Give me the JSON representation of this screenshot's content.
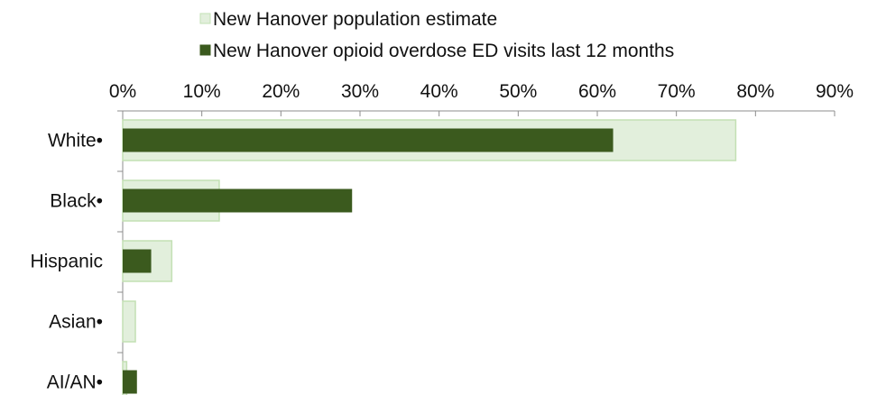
{
  "chart_data": {
    "type": "bar",
    "orientation": "horizontal",
    "title": "",
    "xlabel": "",
    "ylabel": "",
    "categories": [
      "White•",
      "Black•",
      "Hispanic",
      "Asian•",
      "AI/AN•"
    ],
    "series": [
      {
        "name": "New Hanover population estimate",
        "values": [
          77.5,
          12.2,
          6.2,
          1.6,
          0.5
        ],
        "fill": "#e2efdc",
        "stroke": "#c3e0b4"
      },
      {
        "name": "New Hanover opioid overdose ED visits last 12 months",
        "values": [
          62,
          29,
          3.6,
          0,
          1.8
        ],
        "fill": "#3b5a1e",
        "stroke": "#3b5a1e"
      }
    ],
    "xlim": [
      0,
      90
    ],
    "x_ticks": [
      0,
      10,
      20,
      30,
      40,
      50,
      60,
      70,
      80,
      90
    ],
    "tick_labels": [
      "0%",
      "10%",
      "20%",
      "30%",
      "40%",
      "50%",
      "60%",
      "70%",
      "80%",
      "90%"
    ],
    "axis_position": "top",
    "grid": false,
    "legend_position": "top"
  }
}
